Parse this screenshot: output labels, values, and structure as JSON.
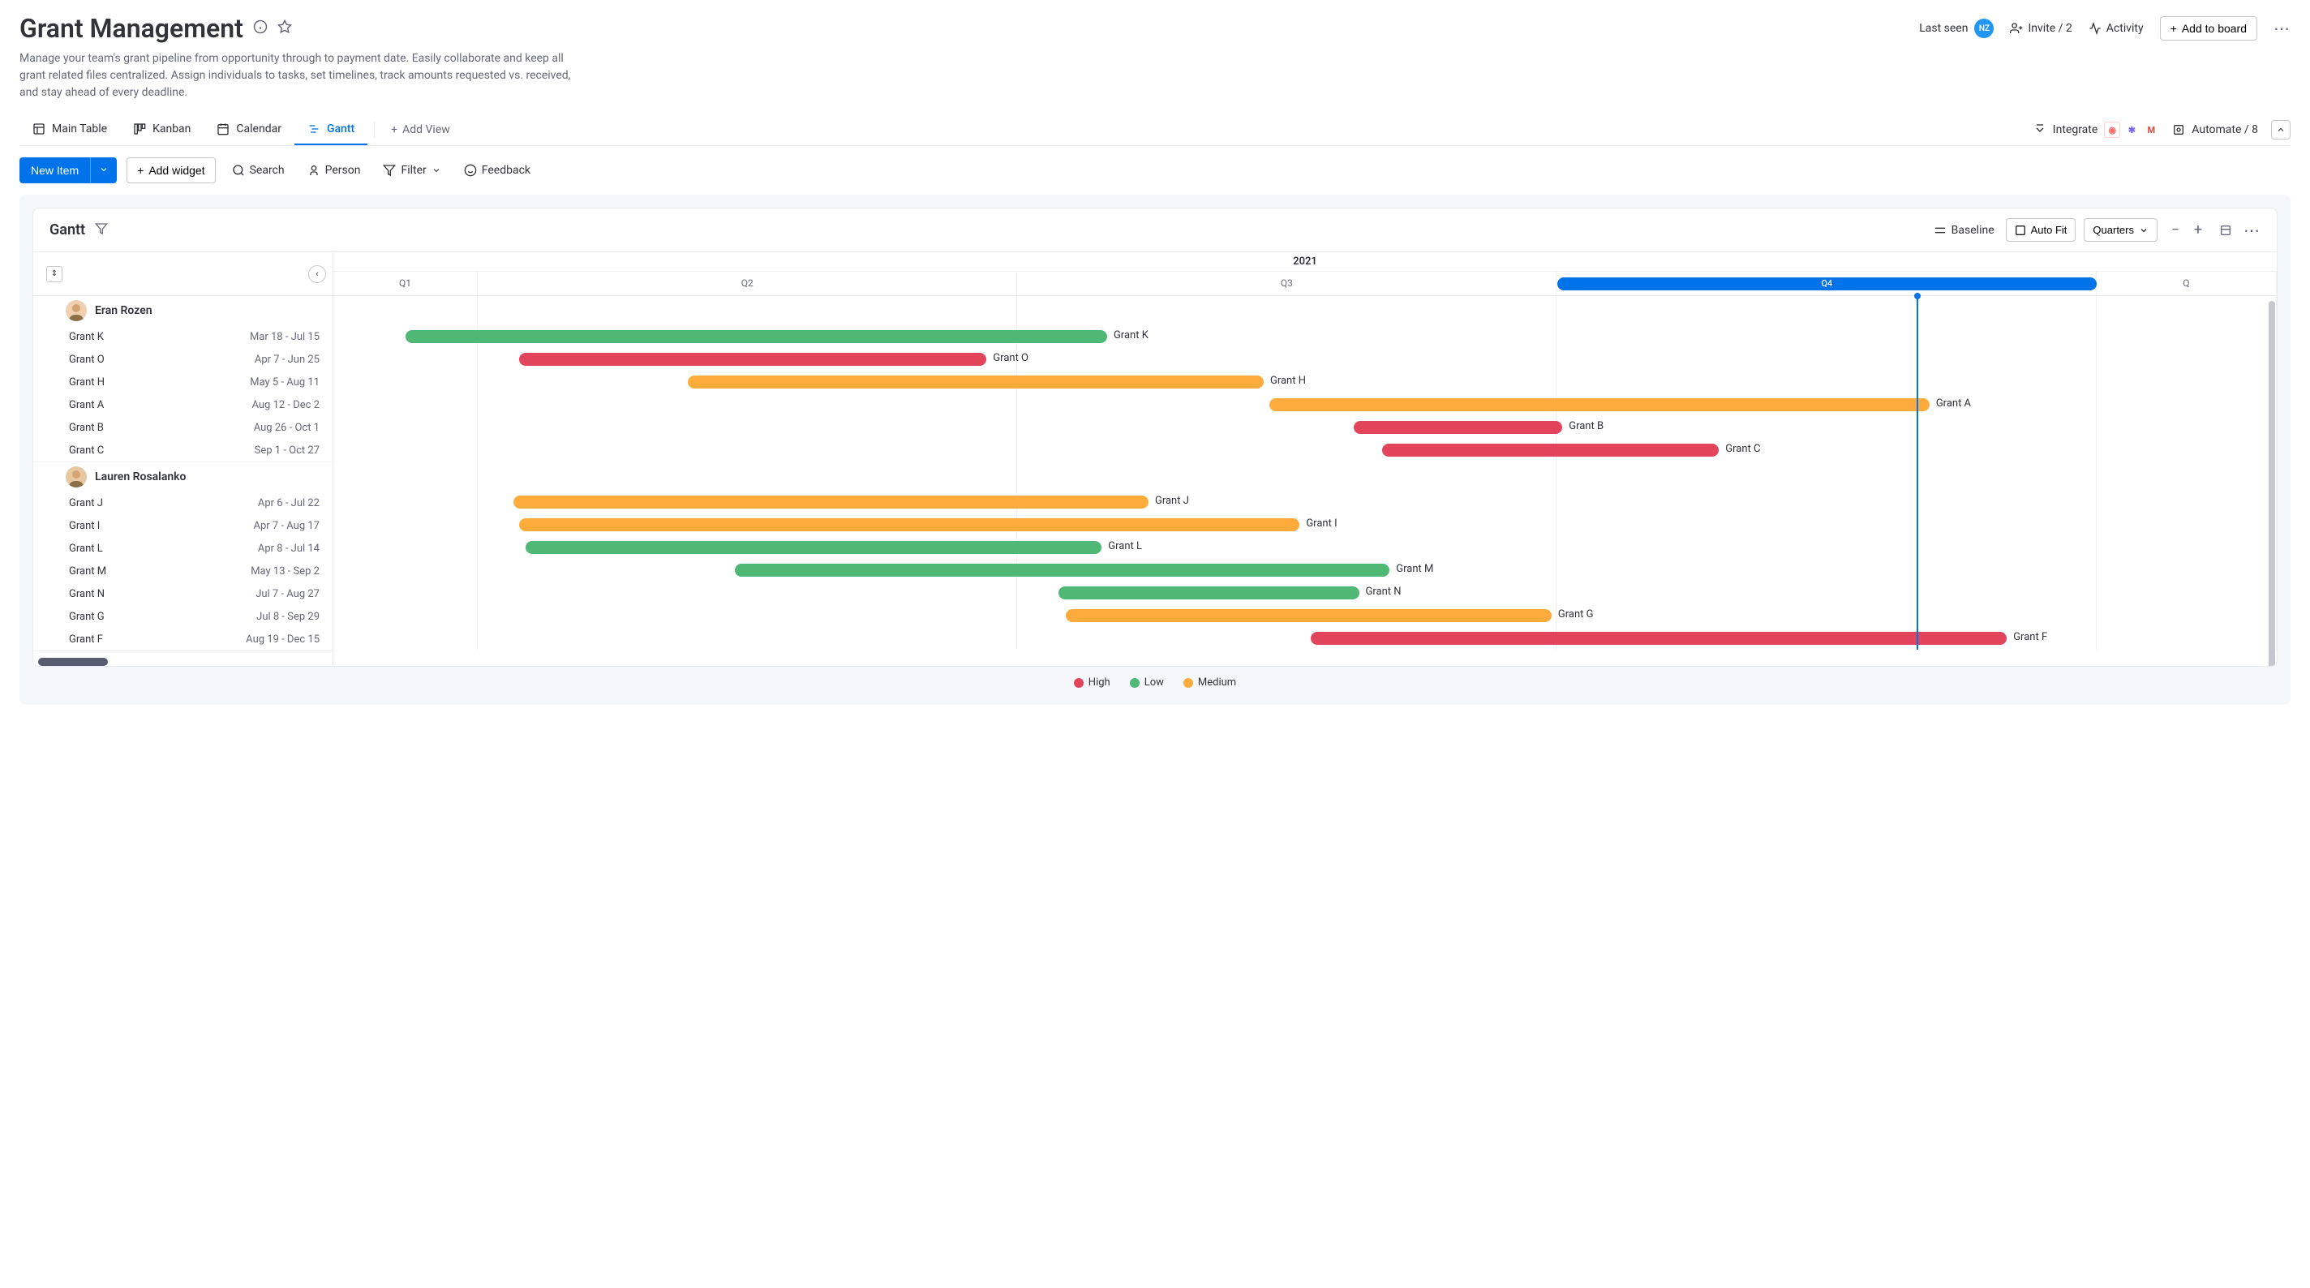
{
  "header": {
    "title": "Grant Management",
    "subtitle": "Manage your team's grant pipeline from opportunity through to payment date. Easily collaborate and keep all grant related files centralized. Assign individuals to tasks, set timelines, track amounts requested vs. received, and stay ahead of every deadline.",
    "last_seen": "Last seen",
    "last_seen_avatar": "NZ",
    "invite": "Invite / 2",
    "activity": "Activity",
    "add_to_board": "Add to board"
  },
  "tabs": {
    "main_table": "Main Table",
    "kanban": "Kanban",
    "calendar": "Calendar",
    "gantt": "Gantt",
    "add_view": "Add View",
    "integrate": "Integrate",
    "automate": "Automate / 8"
  },
  "toolbar": {
    "new_item": "New Item",
    "add_widget": "Add widget",
    "search": "Search",
    "person": "Person",
    "filter": "Filter",
    "feedback": "Feedback"
  },
  "gantt": {
    "title": "Gantt",
    "baseline": "Baseline",
    "auto_fit": "Auto Fit",
    "quarters": "Quarters",
    "year": "2021",
    "timeline_start_month": 2.2,
    "timeline_end_month": 13.0,
    "timeline_span_months": 10.8,
    "today_month": 11.0,
    "q4_marker_start": 9.0,
    "q4_marker_end": 12.0,
    "quarters_list": [
      "Q1",
      "Q2",
      "Q3",
      "Q4",
      "Q"
    ],
    "quarter_boundaries": [
      3.0,
      6.0,
      9.0,
      12.0
    ],
    "groups": [
      {
        "person": "Eran Rozen",
        "avatar_bg": "#f0d0b0",
        "tasks": [
          {
            "name": "Grant K",
            "dates": "Mar 18 - Jul 15",
            "start": 2.6,
            "end": 6.5,
            "color": "#4eb874"
          },
          {
            "name": "Grant O",
            "dates": "Apr 7 - Jun 25",
            "start": 3.23,
            "end": 5.83,
            "color": "#e2445c"
          },
          {
            "name": "Grant H",
            "dates": "May 5 - Aug 11",
            "start": 4.17,
            "end": 7.37,
            "color": "#fdab3d"
          },
          {
            "name": "Grant A",
            "dates": "Aug 12 - Dec 2",
            "start": 7.4,
            "end": 11.07,
            "color": "#fdab3d"
          },
          {
            "name": "Grant B",
            "dates": "Aug 26 - Oct 1",
            "start": 7.87,
            "end": 9.03,
            "color": "#e2445c"
          },
          {
            "name": "Grant C",
            "dates": "Sep 1 - Oct 27",
            "start": 8.03,
            "end": 9.9,
            "color": "#e2445c"
          }
        ]
      },
      {
        "person": "Lauren Rosalanko",
        "avatar_bg": "#e8c8a0",
        "tasks": [
          {
            "name": "Grant J",
            "dates": "Apr 6 - Jul 22",
            "start": 3.2,
            "end": 6.73,
            "color": "#fdab3d"
          },
          {
            "name": "Grant I",
            "dates": "Apr 7 - Aug 17",
            "start": 3.23,
            "end": 7.57,
            "color": "#fdab3d"
          },
          {
            "name": "Grant L",
            "dates": "Apr 8 - Jul 14",
            "start": 3.27,
            "end": 6.47,
            "color": "#4eb874"
          },
          {
            "name": "Grant M",
            "dates": "May 13 - Sep 2",
            "start": 4.43,
            "end": 8.07,
            "color": "#4eb874"
          },
          {
            "name": "Grant N",
            "dates": "Jul 7 - Aug 27",
            "start": 6.23,
            "end": 7.9,
            "color": "#4eb874"
          },
          {
            "name": "Grant G",
            "dates": "Jul 8 - Sep 29",
            "start": 6.27,
            "end": 8.97,
            "color": "#fdab3d"
          },
          {
            "name": "Grant F",
            "dates": "Aug 19 - Dec 15",
            "start": 7.63,
            "end": 11.5,
            "color": "#e2445c"
          }
        ]
      }
    ]
  },
  "legend": [
    {
      "label": "High",
      "color": "#e2445c"
    },
    {
      "label": "Low",
      "color": "#4eb874"
    },
    {
      "label": "Medium",
      "color": "#fdab3d"
    }
  ],
  "colors": {
    "primary": "#0073ea",
    "border": "#e6e9ef",
    "text": "#323338",
    "muted": "#676879"
  }
}
